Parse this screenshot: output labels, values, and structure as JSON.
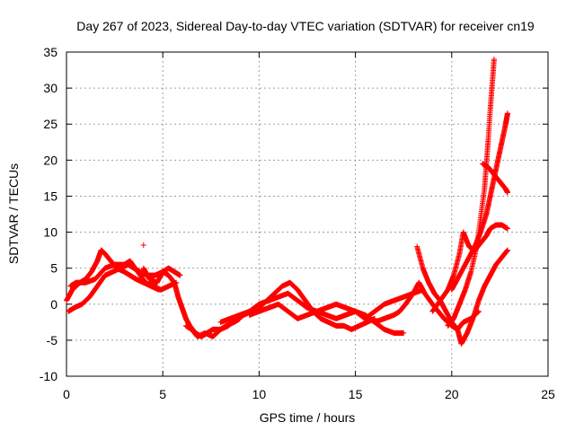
{
  "chart_data": {
    "type": "scatter",
    "title": "Day 267 of 2023, Sidereal Day-to-day VTEC variation (SDTVAR) for receiver cn19",
    "xlabel": "GPS time / hours",
    "ylabel": "SDTVAR / TECUs",
    "xlim": [
      0,
      25
    ],
    "ylim": [
      -10,
      35
    ],
    "xticks": [
      0,
      5,
      10,
      15,
      20,
      25
    ],
    "yticks": [
      -10,
      -5,
      0,
      5,
      10,
      15,
      20,
      25,
      30,
      35
    ],
    "grid": true,
    "marker": "plus",
    "color": "#ff0000",
    "series": [
      {
        "name": "satellite-track-1",
        "x": [
          0.0,
          0.3,
          0.7,
          1.0,
          1.3,
          1.6,
          1.8,
          2.0,
          2.3,
          2.6,
          3.0,
          3.3,
          3.6,
          4.0,
          4.4,
          4.8
        ],
        "y": [
          0.5,
          2.0,
          3.0,
          3.5,
          4.5,
          6.0,
          7.5,
          7.0,
          6.0,
          5.0,
          4.5,
          4.0,
          3.5,
          3.0,
          2.5,
          2.0
        ]
      },
      {
        "name": "satellite-track-2",
        "x": [
          0.1,
          0.4,
          0.8,
          1.2,
          1.6,
          2.0,
          2.4,
          2.8,
          3.2,
          3.5,
          3.8,
          4.2,
          4.6,
          5.0,
          5.3,
          5.6,
          5.9
        ],
        "y": [
          -1.0,
          -0.5,
          0.0,
          1.0,
          2.5,
          4.0,
          4.5,
          5.0,
          5.5,
          5.0,
          4.5,
          4.0,
          4.0,
          4.5,
          5.0,
          4.5,
          4.0
        ]
      },
      {
        "name": "satellite-track-3",
        "x": [
          0.2,
          0.5,
          1.0,
          1.5,
          2.0,
          2.5,
          3.0,
          3.3,
          3.7,
          4.1,
          4.5,
          4.9,
          5.3,
          5.7
        ],
        "y": [
          2.5,
          3.0,
          3.0,
          3.5,
          5.0,
          5.5,
          5.5,
          6.0,
          4.5,
          3.0,
          2.5,
          2.0,
          2.5,
          3.0
        ]
      },
      {
        "name": "satellite-track-4",
        "x": [
          4.0,
          4.3,
          4.7,
          5.0,
          5.3,
          5.6,
          5.8,
          6.0,
          6.2,
          6.4,
          6.7,
          7.0,
          7.3,
          7.6,
          8.0,
          8.3,
          8.7,
          9.0
        ],
        "y": [
          5.0,
          3.5,
          3.0,
          4.5,
          4.0,
          3.0,
          1.0,
          -0.5,
          -2.0,
          -3.0,
          -4.0,
          -4.5,
          -4.0,
          -3.5,
          -3.5,
          -3.0,
          -2.5,
          -2.0
        ]
      },
      {
        "name": "satellite-track-5",
        "x": [
          6.2,
          6.5,
          6.8,
          7.2,
          7.6,
          8.0,
          8.4,
          8.8,
          9.2,
          9.6,
          10.0,
          10.4,
          10.8,
          11.2,
          11.6,
          12.0,
          12.4,
          12.8,
          13.2,
          13.6,
          14.0,
          14.4,
          14.8,
          15.2,
          15.6,
          16.0
        ],
        "y": [
          -3.0,
          -3.5,
          -4.5,
          -4.0,
          -4.5,
          -3.5,
          -3.0,
          -2.0,
          -1.5,
          -1.0,
          -0.5,
          0.5,
          1.5,
          2.5,
          3.0,
          2.0,
          0.5,
          -1.0,
          -2.0,
          -2.5,
          -3.0,
          -3.0,
          -3.5,
          -3.0,
          -2.5,
          -2.0
        ]
      },
      {
        "name": "satellite-track-6",
        "x": [
          8.0,
          8.5,
          9.0,
          9.5,
          10.0,
          10.5,
          11.0,
          11.5,
          12.0,
          12.5,
          13.0,
          13.5,
          14.0,
          14.5,
          15.0,
          15.5,
          16.0,
          16.5,
          17.0,
          17.5
        ],
        "y": [
          -2.5,
          -2.0,
          -1.5,
          -1.0,
          0.0,
          0.5,
          1.0,
          1.5,
          0.5,
          -0.5,
          -1.0,
          -0.5,
          0.0,
          -0.5,
          -1.0,
          -1.5,
          -2.5,
          -3.5,
          -4.0,
          -4.0
        ]
      },
      {
        "name": "satellite-track-7",
        "x": [
          9.5,
          10.0,
          10.5,
          11.0,
          11.5,
          12.0,
          12.5,
          13.0,
          13.5,
          14.0,
          14.5,
          15.0,
          15.5,
          16.0,
          16.5,
          17.0,
          17.5,
          18.0,
          18.5
        ],
        "y": [
          -1.5,
          -1.0,
          -0.5,
          0.0,
          -1.0,
          -2.0,
          -1.5,
          -1.0,
          -1.5,
          -2.0,
          -1.5,
          -1.0,
          -2.0,
          -1.0,
          0.0,
          0.5,
          1.0,
          1.5,
          2.0
        ]
      },
      {
        "name": "satellite-track-8",
        "x": [
          15.5,
          16.0,
          16.5,
          17.0,
          17.3,
          17.6,
          18.0,
          18.3,
          18.6,
          19.0,
          19.3,
          19.6,
          20.0,
          20.3,
          20.6,
          21.0,
          21.4
        ],
        "y": [
          -1.5,
          -2.5,
          -2.0,
          -1.5,
          -1.0,
          0.0,
          1.5,
          3.0,
          1.5,
          0.0,
          -1.0,
          -2.0,
          -3.0,
          -3.5,
          -2.5,
          -2.0,
          -1.0
        ]
      },
      {
        "name": "satellite-track-9",
        "x": [
          18.2,
          18.5,
          18.8,
          19.1,
          19.4,
          19.7,
          20.0,
          20.3,
          20.5,
          20.8,
          21.1,
          21.4,
          21.7,
          22.0,
          22.3,
          22.6,
          22.9
        ],
        "y": [
          8.0,
          5.0,
          3.0,
          1.5,
          0.5,
          -1.0,
          -2.5,
          -3.5,
          -5.5,
          -4.0,
          -2.0,
          0.5,
          2.5,
          4.0,
          5.5,
          6.5,
          7.5
        ]
      },
      {
        "name": "satellite-track-10",
        "x": [
          19.0,
          19.4,
          19.8,
          20.1,
          20.4,
          20.6,
          20.9,
          21.2,
          21.5,
          21.8,
          22.0,
          22.3,
          22.6,
          22.9
        ],
        "y": [
          -1.0,
          0.5,
          2.0,
          4.0,
          7.0,
          10.0,
          8.0,
          7.5,
          8.5,
          9.5,
          10.5,
          11.0,
          11.0,
          10.5
        ]
      },
      {
        "name": "satellite-track-11",
        "x": [
          19.8,
          20.1,
          20.4,
          20.7,
          21.0,
          21.3,
          21.5,
          21.7,
          21.8,
          21.9,
          22.0,
          22.1,
          22.2
        ],
        "y": [
          -3.0,
          -2.0,
          0.0,
          2.0,
          4.5,
          8.0,
          12.0,
          16.0,
          19.5,
          23.0,
          27.0,
          30.5,
          34.0
        ]
      },
      {
        "name": "satellite-track-12",
        "x": [
          20.0,
          20.4,
          20.8,
          21.2,
          21.5,
          21.8,
          22.0,
          22.2,
          22.4,
          22.6,
          22.8,
          22.9
        ],
        "y": [
          2.0,
          4.0,
          6.0,
          8.0,
          10.0,
          12.5,
          15.0,
          17.5,
          20.0,
          22.5,
          25.0,
          26.5
        ]
      },
      {
        "name": "satellite-track-13",
        "x": [
          21.6,
          21.9,
          22.2,
          22.5,
          22.8,
          22.9
        ],
        "y": [
          19.5,
          19.0,
          18.0,
          17.0,
          16.0,
          15.5
        ]
      },
      {
        "name": "outlier",
        "x": [
          4.0
        ],
        "y": [
          8.2
        ]
      }
    ]
  }
}
